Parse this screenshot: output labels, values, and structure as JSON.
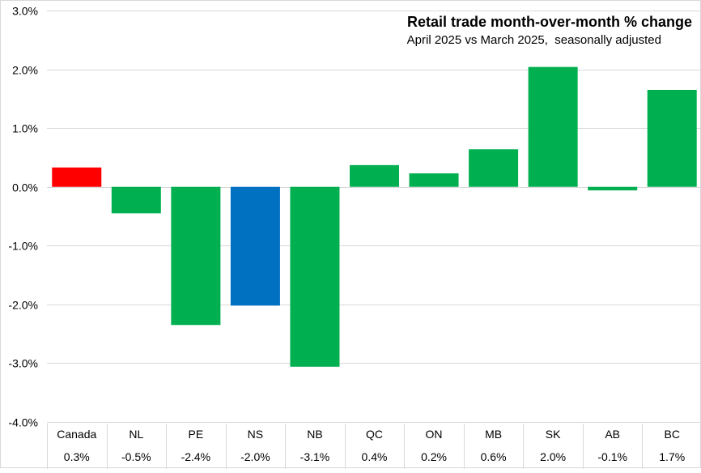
{
  "chart_data": {
    "type": "bar",
    "title": "Retail trade month-over-month % change",
    "subtitle": "April 2025 vs March 2025,  seasonally adjusted",
    "xlabel": "",
    "ylabel": "",
    "ylim": [
      -4,
      3
    ],
    "yticks": [
      3,
      2,
      1,
      0,
      -1,
      -2,
      -3,
      -4
    ],
    "ytick_labels": [
      "3.0%",
      "2.0%",
      "1.0%",
      "0.0%",
      "-1.0%",
      "-2.0%",
      "-3.0%",
      "-4.0%"
    ],
    "grid": true,
    "categories": [
      "Canada",
      "NL",
      "PE",
      "NS",
      "NB",
      "QC",
      "ON",
      "MB",
      "SK",
      "AB",
      "BC"
    ],
    "values": [
      0.33,
      -0.45,
      -2.35,
      -2.02,
      -3.06,
      0.37,
      0.23,
      0.64,
      2.04,
      -0.06,
      1.65
    ],
    "value_labels": [
      "0.3%",
      "-0.5%",
      "-2.4%",
      "-2.0%",
      "-3.1%",
      "0.4%",
      "0.2%",
      "0.6%",
      "2.0%",
      "-0.1%",
      "1.7%"
    ],
    "colors": [
      "#ff0000",
      "#00b050",
      "#00b050",
      "#0070c0",
      "#00b050",
      "#00b050",
      "#00b050",
      "#00b050",
      "#00b050",
      "#00b050",
      "#00b050"
    ]
  }
}
